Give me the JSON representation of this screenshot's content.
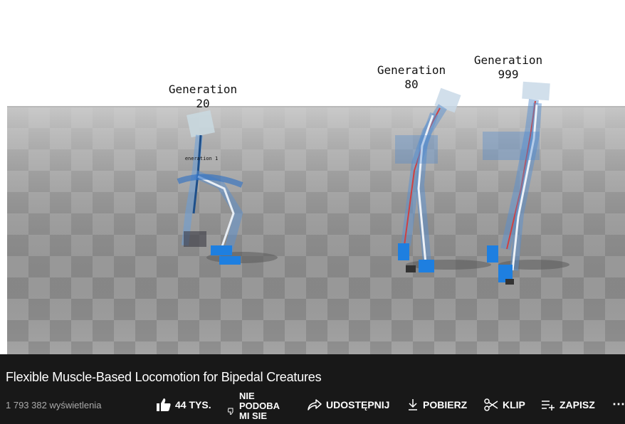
{
  "video": {
    "labels": {
      "gen20": "Generation\n20",
      "gen1": "eneration\n1",
      "gen80": "Generation\n80",
      "gen999": "Generation\n999"
    }
  },
  "info": {
    "title": "Flexible Muscle-Based Locomotion for Bipedal Creatures",
    "views": "1 793 382 wyświetlenia",
    "like_count": "44 TYS.",
    "dislike_label": "NIE PODOBA MI SIE",
    "share_label": "UDOSTĘPNIJ",
    "download_label": "POBIERZ",
    "clip_label": "KLIP",
    "save_label": "ZAPISZ",
    "more_label": "⋯"
  },
  "colors": {
    "panel_bg": "#181818",
    "floor_light": "#a8a8a8",
    "floor_dark": "#8e8e8e",
    "muscle_blue": "#1e7fe0"
  }
}
